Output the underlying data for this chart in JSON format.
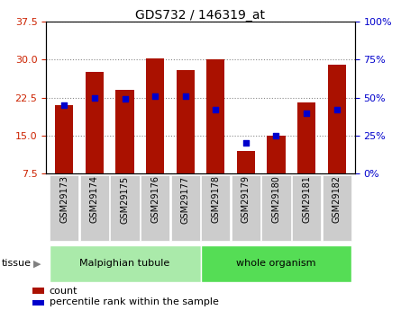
{
  "title": "GDS732 / 146319_at",
  "categories": [
    "GSM29173",
    "GSM29174",
    "GSM29175",
    "GSM29176",
    "GSM29177",
    "GSM29178",
    "GSM29179",
    "GSM29180",
    "GSM29181",
    "GSM29182"
  ],
  "counts": [
    21.0,
    27.5,
    24.0,
    30.3,
    28.0,
    30.0,
    12.0,
    15.0,
    21.5,
    29.0
  ],
  "percentiles": [
    45,
    50,
    49,
    51,
    51,
    42,
    20,
    25,
    40,
    42
  ],
  "ylim_left": [
    7.5,
    37.5
  ],
  "yticks_left": [
    7.5,
    15.0,
    22.5,
    30.0,
    37.5
  ],
  "ylim_right": [
    0,
    100
  ],
  "yticks_right": [
    0,
    25,
    50,
    75,
    100
  ],
  "bar_color": "#aa1100",
  "dot_color": "#0000cc",
  "tissue_groups": [
    {
      "label": "Malpighian tubule",
      "start": 0,
      "end": 5,
      "color": "#aaeaaa"
    },
    {
      "label": "whole organism",
      "start": 5,
      "end": 10,
      "color": "#55dd55"
    }
  ],
  "legend_count_label": "count",
  "legend_pct_label": "percentile rank within the sample",
  "tissue_label": "tissue",
  "grid_color": "#888888",
  "bar_width": 0.6,
  "tick_bg_color": "#cccccc",
  "title_fontsize": 10
}
